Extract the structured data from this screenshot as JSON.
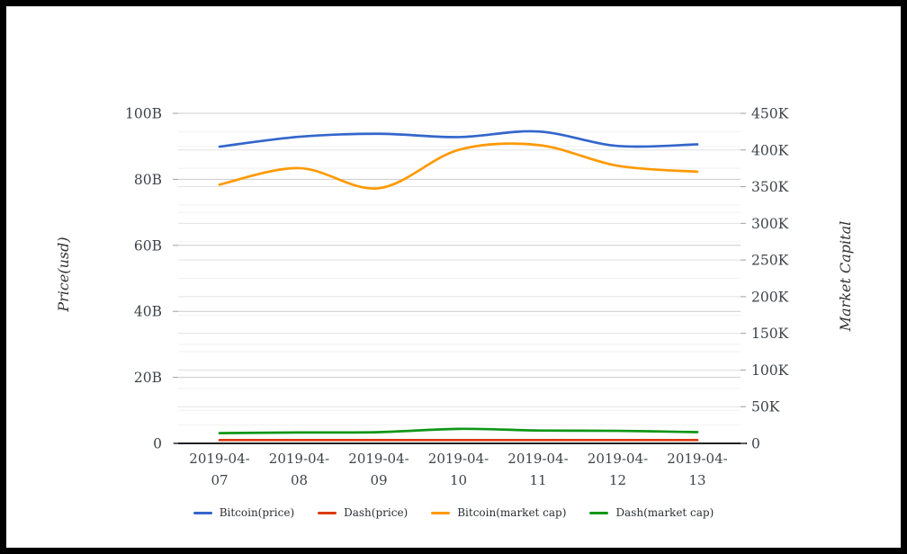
{
  "frame": {
    "border_color": "#000000",
    "background": "#ffffff"
  },
  "chart_data": {
    "type": "line",
    "title": "",
    "x": [
      "2019-04-07",
      "2019-04-08",
      "2019-04-09",
      "2019-04-10",
      "2019-04-11",
      "2019-04-12",
      "2019-04-13"
    ],
    "series": [
      {
        "name": "Bitcoin(price)",
        "color": "#3366cc",
        "values": [
          89.9,
          92.9,
          93.8,
          92.8,
          94.5,
          90.1,
          90.6
        ]
      },
      {
        "name": "Dash(price)",
        "color": "#dc3912",
        "values": [
          1.0,
          1.0,
          1.0,
          1.0,
          1.0,
          1.0,
          1.0
        ]
      },
      {
        "name": "Bitcoin(market cap)",
        "color": "#ff9900",
        "values": [
          78.4,
          83.4,
          77.3,
          88.9,
          90.4,
          84.1,
          82.3
        ]
      },
      {
        "name": "Dash(market cap)",
        "color": "#109618",
        "values": [
          3.1,
          3.3,
          3.4,
          4.4,
          3.9,
          3.8,
          3.4
        ]
      }
    ],
    "values_scale": "left axis units (B = billions USD); right axis equivalent = value x 4.5 (K)",
    "axes": {
      "left": {
        "title": "Price(usd)",
        "ticks": [
          "0",
          "20B",
          "40B",
          "60B",
          "80B",
          "100B"
        ],
        "range": [
          0,
          100
        ]
      },
      "right": {
        "title": "Market Capital",
        "ticks": [
          "0",
          "50K",
          "100K",
          "150K",
          "200K",
          "250K",
          "300K",
          "350K",
          "400K",
          "450K"
        ],
        "range": [
          0,
          450
        ]
      }
    },
    "legend": {
      "position": "bottom",
      "entries": [
        "Bitcoin(price)",
        "Dash(price)",
        "Bitcoin(market cap)",
        "Dash(market cap)"
      ]
    },
    "grid": {
      "major_color": "#cccccc",
      "secondary_color": "#e2e2e2",
      "minor_color": "#f1f1f1",
      "baseline_color": "#202124",
      "tick_color": "#9aa0a6",
      "label_color": "#3f4449"
    }
  }
}
